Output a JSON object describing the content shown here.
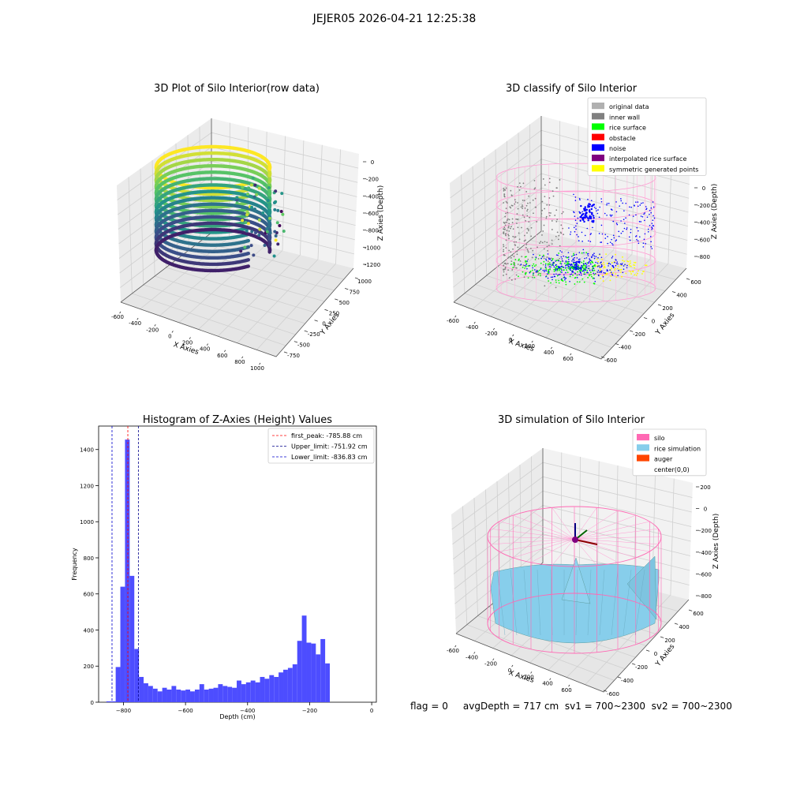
{
  "figure": {
    "suptitle": "JEJER05 2026-04-21 12:25:38",
    "footer": "flag = 0     avgDepth = 717 cm  sv1 = 700~2300  sv2 = 700~2300"
  },
  "chart_data": [
    {
      "type": "scatter",
      "title": "3D Plot of Silo Interior(row data)",
      "xlabel": "X Axies",
      "ylabel": "Y Axies",
      "zlabel": "Z Axies (Depth)",
      "x_ticks": [
        -600,
        -400,
        -200,
        0,
        200,
        400,
        600,
        800,
        1000
      ],
      "y_ticks": [
        -750,
        -500,
        -250,
        0,
        250,
        500,
        750,
        1000
      ],
      "z_ticks": [
        0,
        -200,
        -400,
        -600,
        -800,
        -1000,
        -1200
      ],
      "colormap": "viridis"
    },
    {
      "type": "scatter",
      "title": "3D classify of Silo Interior",
      "xlabel": "X Axies",
      "ylabel": "Y Axies",
      "zlabel": "Z Axies (Depth)",
      "x_ticks": [
        -600,
        -400,
        -200,
        0,
        200,
        400,
        600
      ],
      "y_ticks": [
        -600,
        -400,
        -200,
        0,
        200,
        400,
        600
      ],
      "z_ticks": [
        0,
        -200,
        -400,
        -600,
        -800
      ],
      "legend": [
        {
          "label": "original data",
          "color": "#b0b0b0"
        },
        {
          "label": "inner wall",
          "color": "#808080"
        },
        {
          "label": "rice surface",
          "color": "#00ff00"
        },
        {
          "label": "obstacle",
          "color": "#ff0000"
        },
        {
          "label": "noise",
          "color": "#0000ff"
        },
        {
          "label": "interpolated rice surface",
          "color": "#800080"
        },
        {
          "label": "symmetric generated points",
          "color": "#ffff00"
        }
      ],
      "legend_position": "top-right"
    },
    {
      "type": "bar",
      "title": "Histogram of Z-Axies (Height) Values",
      "xlabel": "Depth (cm)",
      "ylabel": "Frequency",
      "xlim": [
        -880,
        15
      ],
      "ylim": [
        0,
        1530
      ],
      "x_ticks": [
        -800,
        -600,
        -400,
        -200,
        0
      ],
      "y_ticks": [
        0,
        200,
        400,
        600,
        800,
        1000,
        1200,
        1400
      ],
      "bin_width": 15,
      "bins_start": [
        -855,
        -840,
        -825,
        -810,
        -795,
        -780,
        -765,
        -750,
        -735,
        -720,
        -705,
        -690,
        -675,
        -660,
        -645,
        -630,
        -615,
        -600,
        -585,
        -570,
        -555,
        -540,
        -525,
        -510,
        -495,
        -480,
        -465,
        -450,
        -435,
        -420,
        -405,
        -390,
        -375,
        -360,
        -345,
        -330,
        -315,
        -300,
        -285,
        -270,
        -255,
        -240,
        -225,
        -210,
        -195,
        -180,
        -165,
        -150,
        -135,
        -120,
        -105,
        -90,
        -75,
        -60,
        -45,
        -30,
        -15
      ],
      "values": [
        5,
        5,
        195,
        640,
        1455,
        700,
        295,
        140,
        105,
        90,
        75,
        60,
        80,
        70,
        90,
        70,
        65,
        70,
        60,
        70,
        100,
        70,
        75,
        80,
        100,
        90,
        85,
        80,
        120,
        100,
        110,
        120,
        110,
        140,
        130,
        150,
        140,
        165,
        180,
        190,
        210,
        340,
        480,
        330,
        325,
        265,
        350,
        215,
        0,
        0,
        0,
        0,
        0,
        0,
        0,
        0,
        0
      ],
      "bar_color": "#4d4dff",
      "vlines": [
        {
          "label": "first_peak: -785.88 cm",
          "x": -785.88,
          "color": "#ff0000"
        },
        {
          "label": "Upper_limit: -751.92 cm",
          "x": -751.92,
          "color": "#00008b"
        },
        {
          "label": "Lower_limit: -836.83 cm",
          "x": -836.83,
          "color": "#0000cd"
        }
      ],
      "legend_position": "top-right"
    },
    {
      "type": "area",
      "title": "3D simulation of Silo Interior",
      "xlabel": "X Axies",
      "ylabel": "Y Axies",
      "zlabel": "Z Axies (Depth)",
      "x_ticks": [
        -600,
        -400,
        -200,
        0,
        200,
        400,
        600
      ],
      "y_ticks": [
        -600,
        -400,
        -200,
        0,
        200,
        400,
        600
      ],
      "z_ticks": [
        200,
        0,
        -200,
        -400,
        -600,
        -800
      ],
      "legend": [
        {
          "label": "silo",
          "color": "#ff69b4"
        },
        {
          "label": "rice simulation",
          "color": "#87ceeb"
        },
        {
          "label": "auger",
          "color": "#ff4500"
        },
        {
          "label": "center(0,0)",
          "color": ""
        }
      ],
      "legend_position": "top-right"
    }
  ]
}
